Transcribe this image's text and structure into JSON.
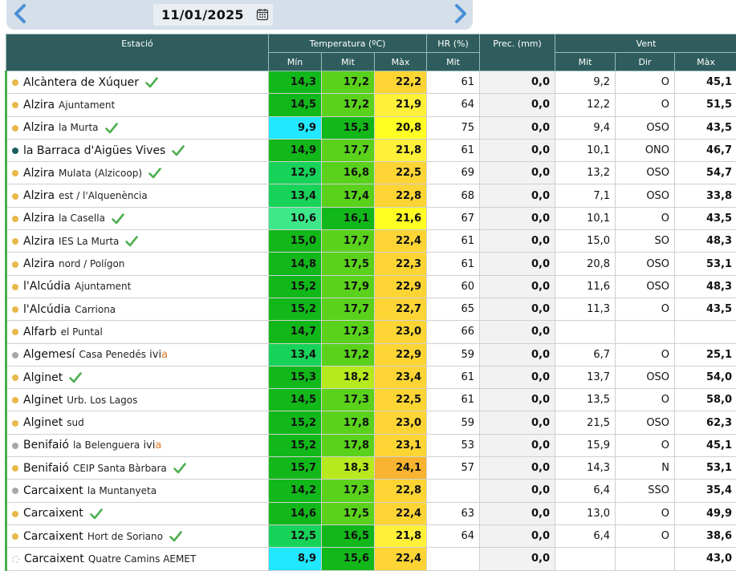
{
  "date": "11/01/2025",
  "icons": {
    "prev": "chevron-left-icon",
    "next": "chevron-right-icon",
    "calendar": "calendar-icon",
    "check": "checkmark-icon"
  },
  "header": {
    "station": "Estació",
    "temp": "Temperatura (ºC)",
    "hr": "HR (%)",
    "prec": "Prec. (mm)",
    "wind": "Vent",
    "min": "Mín",
    "mit1": "Mit",
    "max1": "Màx",
    "hr_mit": "Mit",
    "wind_mit": "Mit",
    "wind_dir": "Dir",
    "wind_max": "Màx"
  },
  "colors": {
    "cyan": "#22e8ff",
    "light_green": "#3ee88a",
    "mid_green": "#18d35a",
    "green": "#12b81a",
    "lime": "#5ad21c",
    "yellow_green": "#b7ea1e",
    "yellow": "#ffff24",
    "yellow2": "#fff03a",
    "gold": "#fcd535",
    "orange": "#f8b430"
  },
  "rows": [
    {
      "dot": "orange",
      "main": "Alcàntera de Xúquer",
      "sub": "",
      "check": true,
      "ivia": false,
      "tmin": "14,3",
      "tmin_c": "green",
      "tmit": "17,2",
      "tmit_c": "lime",
      "tmax": "22,2",
      "tmax_c": "gold",
      "hr": "61",
      "prec": "0,0",
      "wmit": "9,2",
      "wdir": "O",
      "wmax": "45,1"
    },
    {
      "dot": "orange",
      "main": "Alzira",
      "sub": "Ajuntament",
      "check": false,
      "ivia": false,
      "tmin": "14,5",
      "tmin_c": "green",
      "tmit": "17,2",
      "tmit_c": "lime",
      "tmax": "21,9",
      "tmax_c": "yellow2",
      "hr": "64",
      "prec": "0,0",
      "wmit": "12,2",
      "wdir": "O",
      "wmax": "51,5"
    },
    {
      "dot": "orange",
      "main": "Alzira",
      "sub": "la Murta",
      "check": true,
      "ivia": false,
      "tmin": "9,9",
      "tmin_c": "cyan",
      "tmit": "15,3",
      "tmit_c": "green",
      "tmax": "20,8",
      "tmax_c": "yellow",
      "hr": "75",
      "prec": "0,0",
      "wmit": "9,4",
      "wdir": "OSO",
      "wmax": "43,5"
    },
    {
      "dot": "teal",
      "main": "la Barraca d'Aigües Vives",
      "sub": "",
      "check": true,
      "ivia": false,
      "tmin": "14,9",
      "tmin_c": "green",
      "tmit": "17,7",
      "tmit_c": "lime",
      "tmax": "21,8",
      "tmax_c": "yellow2",
      "hr": "61",
      "prec": "0,0",
      "wmit": "10,1",
      "wdir": "ONO",
      "wmax": "46,7"
    },
    {
      "dot": "orange",
      "main": "Alzira",
      "sub": "Mulata (Alzicoop)",
      "check": true,
      "ivia": false,
      "tmin": "12,9",
      "tmin_c": "mid_green",
      "tmit": "16,8",
      "tmit_c": "lime",
      "tmax": "22,5",
      "tmax_c": "gold",
      "hr": "69",
      "prec": "0,0",
      "wmit": "13,2",
      "wdir": "OSO",
      "wmax": "54,7"
    },
    {
      "dot": "orange",
      "main": "Alzira",
      "sub": "est / l'Alquenència",
      "check": false,
      "ivia": false,
      "tmin": "13,4",
      "tmin_c": "mid_green",
      "tmit": "17,4",
      "tmit_c": "lime",
      "tmax": "22,8",
      "tmax_c": "gold",
      "hr": "68",
      "prec": "0,0",
      "wmit": "7,1",
      "wdir": "OSO",
      "wmax": "33,8"
    },
    {
      "dot": "orange",
      "main": "Alzira",
      "sub": "la Casella",
      "check": true,
      "ivia": false,
      "tmin": "10,6",
      "tmin_c": "light_green",
      "tmit": "16,1",
      "tmit_c": "green",
      "tmax": "21,6",
      "tmax_c": "yellow",
      "hr": "67",
      "prec": "0,0",
      "wmit": "10,1",
      "wdir": "O",
      "wmax": "43,5"
    },
    {
      "dot": "orange",
      "main": "Alzira",
      "sub": "IES La Murta",
      "check": true,
      "ivia": false,
      "tmin": "15,0",
      "tmin_c": "green",
      "tmit": "17,7",
      "tmit_c": "lime",
      "tmax": "22,4",
      "tmax_c": "gold",
      "hr": "61",
      "prec": "0,0",
      "wmit": "15,0",
      "wdir": "SO",
      "wmax": "48,3"
    },
    {
      "dot": "orange",
      "main": "Alzira",
      "sub": "nord / Polígon",
      "check": false,
      "ivia": false,
      "tmin": "14,8",
      "tmin_c": "green",
      "tmit": "17,5",
      "tmit_c": "lime",
      "tmax": "22,3",
      "tmax_c": "gold",
      "hr": "61",
      "prec": "0,0",
      "wmit": "20,8",
      "wdir": "OSO",
      "wmax": "53,1"
    },
    {
      "dot": "orange",
      "main": "l'Alcúdia",
      "sub": "Ajuntament",
      "check": false,
      "ivia": false,
      "tmin": "15,2",
      "tmin_c": "green",
      "tmit": "17,9",
      "tmit_c": "lime",
      "tmax": "22,9",
      "tmax_c": "gold",
      "hr": "60",
      "prec": "0,0",
      "wmit": "11,6",
      "wdir": "OSO",
      "wmax": "48,3"
    },
    {
      "dot": "orange",
      "main": "l'Alcúdia",
      "sub": "Carriona",
      "check": false,
      "ivia": false,
      "tmin": "15,2",
      "tmin_c": "green",
      "tmit": "17,7",
      "tmit_c": "lime",
      "tmax": "22,7",
      "tmax_c": "gold",
      "hr": "65",
      "prec": "0,0",
      "wmit": "11,3",
      "wdir": "O",
      "wmax": "43,5"
    },
    {
      "dot": "orange",
      "main": "Alfarb",
      "sub": "el Puntal",
      "check": false,
      "ivia": false,
      "tmin": "14,7",
      "tmin_c": "green",
      "tmit": "17,3",
      "tmit_c": "lime",
      "tmax": "23,0",
      "tmax_c": "gold",
      "hr": "66",
      "prec": "0,0",
      "wmit": "",
      "wdir": "",
      "wmax": ""
    },
    {
      "dot": "gray",
      "main": "Algemesí",
      "sub": "Casa Penedés",
      "check": false,
      "ivia": true,
      "ivia_pre": "ivi",
      "ivia_a": "a",
      "tmin": "13,4",
      "tmin_c": "mid_green",
      "tmit": "17,2",
      "tmit_c": "lime",
      "tmax": "22,9",
      "tmax_c": "gold",
      "hr": "59",
      "prec": "0,0",
      "wmit": "6,7",
      "wdir": "O",
      "wmax": "25,1"
    },
    {
      "dot": "orange",
      "main": "Alginet",
      "sub": "",
      "check": true,
      "ivia": false,
      "tmin": "15,3",
      "tmin_c": "green",
      "tmit": "18,2",
      "tmit_c": "yellow_green",
      "tmax": "23,4",
      "tmax_c": "gold",
      "hr": "61",
      "prec": "0,0",
      "wmit": "13,7",
      "wdir": "OSO",
      "wmax": "54,0"
    },
    {
      "dot": "orange",
      "main": "Alginet",
      "sub": "Urb. Los Lagos",
      "check": false,
      "ivia": false,
      "tmin": "14,5",
      "tmin_c": "green",
      "tmit": "17,3",
      "tmit_c": "lime",
      "tmax": "22,5",
      "tmax_c": "gold",
      "hr": "61",
      "prec": "0,0",
      "wmit": "13,5",
      "wdir": "O",
      "wmax": "58,0"
    },
    {
      "dot": "orange",
      "main": "Alginet",
      "sub": "sud",
      "check": false,
      "ivia": false,
      "tmin": "15,2",
      "tmin_c": "green",
      "tmit": "17,8",
      "tmit_c": "lime",
      "tmax": "23,0",
      "tmax_c": "gold",
      "hr": "59",
      "prec": "0,0",
      "wmit": "21,5",
      "wdir": "OSO",
      "wmax": "62,3"
    },
    {
      "dot": "gray",
      "main": "Benifaió",
      "sub": "la Belenguera",
      "check": false,
      "ivia": true,
      "ivia_pre": "ivi",
      "ivia_a": "a",
      "tmin": "15,2",
      "tmin_c": "green",
      "tmit": "17,8",
      "tmit_c": "lime",
      "tmax": "23,1",
      "tmax_c": "gold",
      "hr": "53",
      "prec": "0,0",
      "wmit": "15,9",
      "wdir": "O",
      "wmax": "45,1"
    },
    {
      "dot": "orange",
      "main": "Benifaió",
      "sub": "CEIP Santa Bàrbara",
      "check": true,
      "ivia": false,
      "tmin": "15,7",
      "tmin_c": "green",
      "tmit": "18,3",
      "tmit_c": "yellow_green",
      "tmax": "24,1",
      "tmax_c": "orange",
      "hr": "57",
      "prec": "0,0",
      "wmit": "14,3",
      "wdir": "N",
      "wmax": "53,1"
    },
    {
      "dot": "gray",
      "main": "Carcaixent",
      "sub": "la Muntanyeta",
      "check": false,
      "ivia": false,
      "tmin": "14,2",
      "tmin_c": "green",
      "tmit": "17,3",
      "tmit_c": "lime",
      "tmax": "22,8",
      "tmax_c": "gold",
      "hr": "",
      "prec": "0,0",
      "wmit": "6,4",
      "wdir": "SSO",
      "wmax": "35,4"
    },
    {
      "dot": "orange",
      "main": "Carcaixent",
      "sub": "",
      "check": true,
      "ivia": false,
      "tmin": "14,6",
      "tmin_c": "green",
      "tmit": "17,5",
      "tmit_c": "lime",
      "tmax": "22,4",
      "tmax_c": "gold",
      "hr": "63",
      "prec": "0,0",
      "wmit": "13,0",
      "wdir": "O",
      "wmax": "49,9"
    },
    {
      "dot": "orange",
      "main": "Carcaixent",
      "sub": "Hort de Soriano",
      "check": true,
      "ivia": false,
      "tmin": "12,5",
      "tmin_c": "mid_green",
      "tmit": "16,5",
      "tmit_c": "green",
      "tmax": "21,8",
      "tmax_c": "yellow2",
      "hr": "64",
      "prec": "0,0",
      "wmit": "6,4",
      "wdir": "O",
      "wmax": "38,6"
    },
    {
      "dot": "empty",
      "main": "Carcaixent",
      "sub": "Quatre Camins AEMET",
      "check": false,
      "ivia": false,
      "tmin": "8,9",
      "tmin_c": "cyan",
      "tmit": "15,6",
      "tmit_c": "green",
      "tmax": "22,4",
      "tmax_c": "gold",
      "hr": "",
      "prec": "0,0",
      "wmit": "",
      "wdir": "",
      "wmax": "43,0"
    }
  ]
}
